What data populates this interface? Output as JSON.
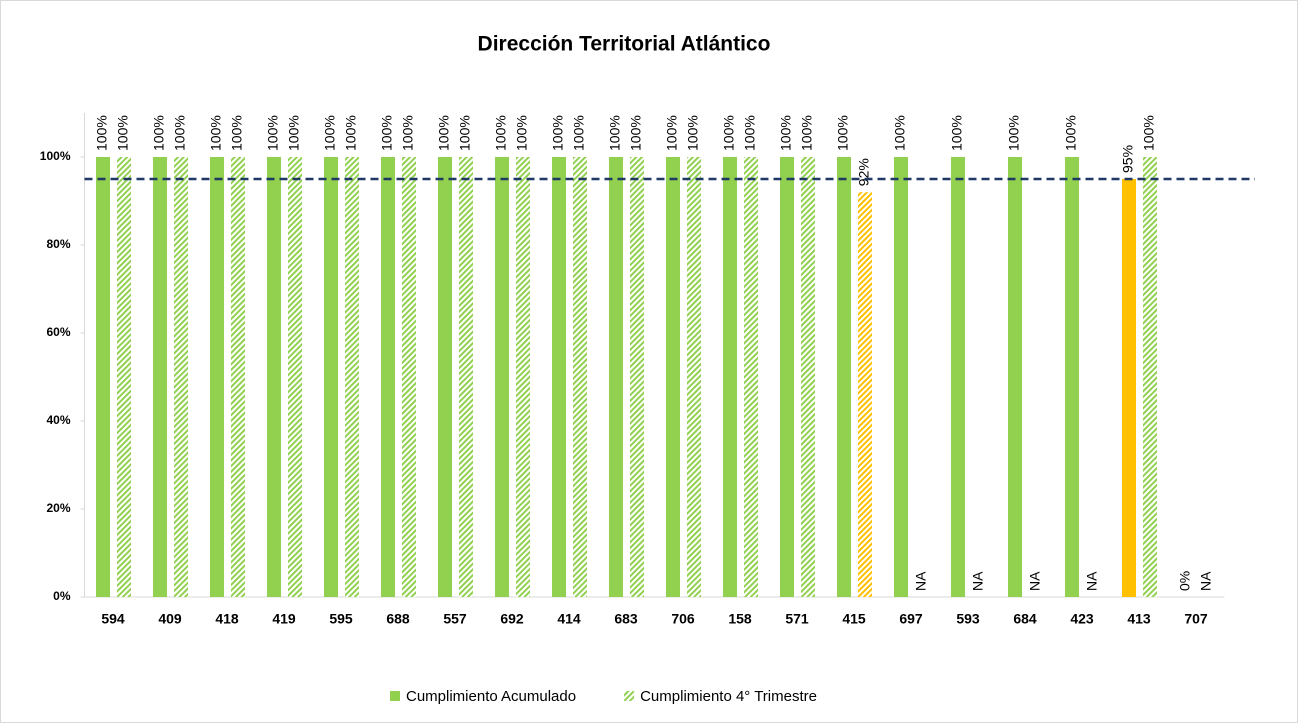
{
  "chart_data": {
    "type": "bar",
    "title": "Dirección Territorial Atlántico",
    "categories": [
      "594",
      "409",
      "418",
      "419",
      "595",
      "688",
      "557",
      "692",
      "414",
      "683",
      "706",
      "158",
      "571",
      "415",
      "697",
      "593",
      "684",
      "423",
      "413",
      "707"
    ],
    "series": [
      {
        "name": "Cumplimiento Acumulado",
        "color": "#92d050",
        "hatched": false,
        "colors": [
          "#92d050",
          "#92d050",
          "#92d050",
          "#92d050",
          "#92d050",
          "#92d050",
          "#92d050",
          "#92d050",
          "#92d050",
          "#92d050",
          "#92d050",
          "#92d050",
          "#92d050",
          "#92d050",
          "#92d050",
          "#92d050",
          "#92d050",
          "#92d050",
          "#ffc000",
          "#92d050"
        ],
        "values": [
          100,
          100,
          100,
          100,
          100,
          100,
          100,
          100,
          100,
          100,
          100,
          100,
          100,
          100,
          100,
          100,
          100,
          100,
          95,
          0
        ],
        "value_labels": [
          "100%",
          "100%",
          "100%",
          "100%",
          "100%",
          "100%",
          "100%",
          "100%",
          "100%",
          "100%",
          "100%",
          "100%",
          "100%",
          "100%",
          "100%",
          "100%",
          "100%",
          "100%",
          "95%",
          "0%"
        ]
      },
      {
        "name": "Cumplimiento 4° Trimestre",
        "color": "#92d050",
        "hatched": true,
        "colors": [
          "#92d050",
          "#92d050",
          "#92d050",
          "#92d050",
          "#92d050",
          "#92d050",
          "#92d050",
          "#92d050",
          "#92d050",
          "#92d050",
          "#92d050",
          "#92d050",
          "#92d050",
          "#ffc000",
          "#92d050",
          "#92d050",
          "#92d050",
          "#92d050",
          "#92d050",
          "#92d050"
        ],
        "values": [
          100,
          100,
          100,
          100,
          100,
          100,
          100,
          100,
          100,
          100,
          100,
          100,
          100,
          92,
          null,
          null,
          null,
          null,
          100,
          null
        ],
        "value_labels": [
          "100%",
          "100%",
          "100%",
          "100%",
          "100%",
          "100%",
          "100%",
          "100%",
          "100%",
          "100%",
          "100%",
          "100%",
          "100%",
          "92%",
          "NA",
          "NA",
          "NA",
          "NA",
          "100%",
          "NA"
        ]
      }
    ],
    "ylim": [
      0,
      110
    ],
    "yticks": [
      {
        "value": 0,
        "label": "0%"
      },
      {
        "value": 20,
        "label": "20%"
      },
      {
        "value": 40,
        "label": "40%"
      },
      {
        "value": 60,
        "label": "60%"
      },
      {
        "value": 80,
        "label": "80%"
      },
      {
        "value": 100,
        "label": "100%"
      }
    ],
    "reference_line": {
      "value": 95,
      "color": "#1f3864"
    },
    "legend": "bottom"
  }
}
